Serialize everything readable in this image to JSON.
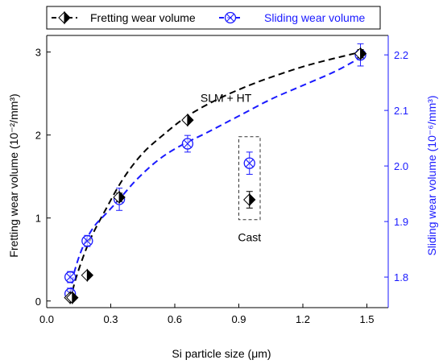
{
  "chart_data": {
    "type": "scatter",
    "xlabel": "Si particle size (μm)",
    "ylabel_left": "Fretting wear volume (10⁻²/mm³)",
    "ylabel_right": "Sliding wear volume (10⁻⁶/mm³)",
    "xlim": [
      0.0,
      1.6
    ],
    "ylim_left": [
      -0.08,
      3.2
    ],
    "ylim_right": [
      1.745,
      2.235
    ],
    "x_ticks": [
      "0.0",
      "0.3",
      "0.6",
      "0.9",
      "1.2",
      "1.5"
    ],
    "x_tick_values": [
      0.0,
      0.3,
      0.6,
      0.9,
      1.2,
      1.5
    ],
    "y_left_ticks": [
      "0",
      "1",
      "2",
      "3"
    ],
    "y_left_tick_values": [
      0,
      1,
      2,
      3
    ],
    "y_right_ticks": [
      "1.8",
      "1.9",
      "2.0",
      "2.1",
      "2.2"
    ],
    "y_right_tick_values": [
      1.8,
      1.9,
      2.0,
      2.1,
      2.2
    ],
    "legend_position": "top",
    "grid": false,
    "series": [
      {
        "name": "Fretting wear volume",
        "axis": "left",
        "color": "#000000",
        "marker": "half-filled-diamond",
        "line_style": "dashed",
        "x": [
          0.11,
          0.12,
          0.19,
          0.34,
          0.66,
          1.47
        ],
        "y": [
          0.04,
          0.04,
          0.31,
          1.25,
          2.18,
          2.98
        ],
        "error": [
          0.02,
          0.02,
          0.03,
          0.05,
          0.03,
          0.05
        ]
      },
      {
        "name": "Sliding wear volume",
        "axis": "right",
        "color": "#1a1aff",
        "marker": "crossed-circle",
        "line_style": "dashed",
        "x": [
          0.11,
          0.11,
          0.19,
          0.34,
          0.66,
          1.47
        ],
        "y": [
          1.8,
          1.77,
          1.865,
          1.94,
          2.04,
          2.2
        ],
        "error": [
          0.01,
          0.01,
          0.01,
          0.02,
          0.015,
          0.02
        ]
      }
    ],
    "outliers": [
      {
        "series": "Fretting wear volume",
        "axis": "left",
        "x": 0.95,
        "y": 1.22,
        "error": 0.1
      },
      {
        "series": "Sliding wear volume",
        "axis": "right",
        "x": 0.95,
        "y": 2.005,
        "error": 0.02
      }
    ],
    "fit_curves": [
      {
        "series": "Fretting wear volume",
        "axis": "left",
        "x": [
          0.11,
          0.14,
          0.2,
          0.28,
          0.36,
          0.45,
          0.55,
          0.66,
          0.8,
          0.95,
          1.1,
          1.25,
          1.47
        ],
        "y": [
          0.0,
          0.3,
          0.72,
          1.12,
          1.48,
          1.78,
          2.01,
          2.23,
          2.43,
          2.6,
          2.74,
          2.86,
          3.0
        ]
      },
      {
        "series": "Sliding wear volume",
        "axis": "right",
        "x": [
          0.11,
          0.13,
          0.17,
          0.22,
          0.28,
          0.34,
          0.42,
          0.52,
          0.62,
          0.75,
          0.9,
          1.05,
          1.2,
          1.35,
          1.47
        ],
        "y": [
          1.77,
          1.81,
          1.855,
          1.89,
          1.915,
          1.94,
          1.975,
          2.01,
          2.035,
          2.06,
          2.09,
          2.12,
          2.145,
          2.17,
          2.195
        ]
      }
    ],
    "annotations": [
      {
        "text": "SLM + HT",
        "x": 0.84,
        "y_left": 2.4
      },
      {
        "text": "Cast",
        "x": 0.95,
        "y_left": 0.72
      }
    ],
    "box": {
      "x0": 0.9,
      "x1": 1.0,
      "y0_left": 0.98,
      "y1_left": 1.98
    }
  }
}
